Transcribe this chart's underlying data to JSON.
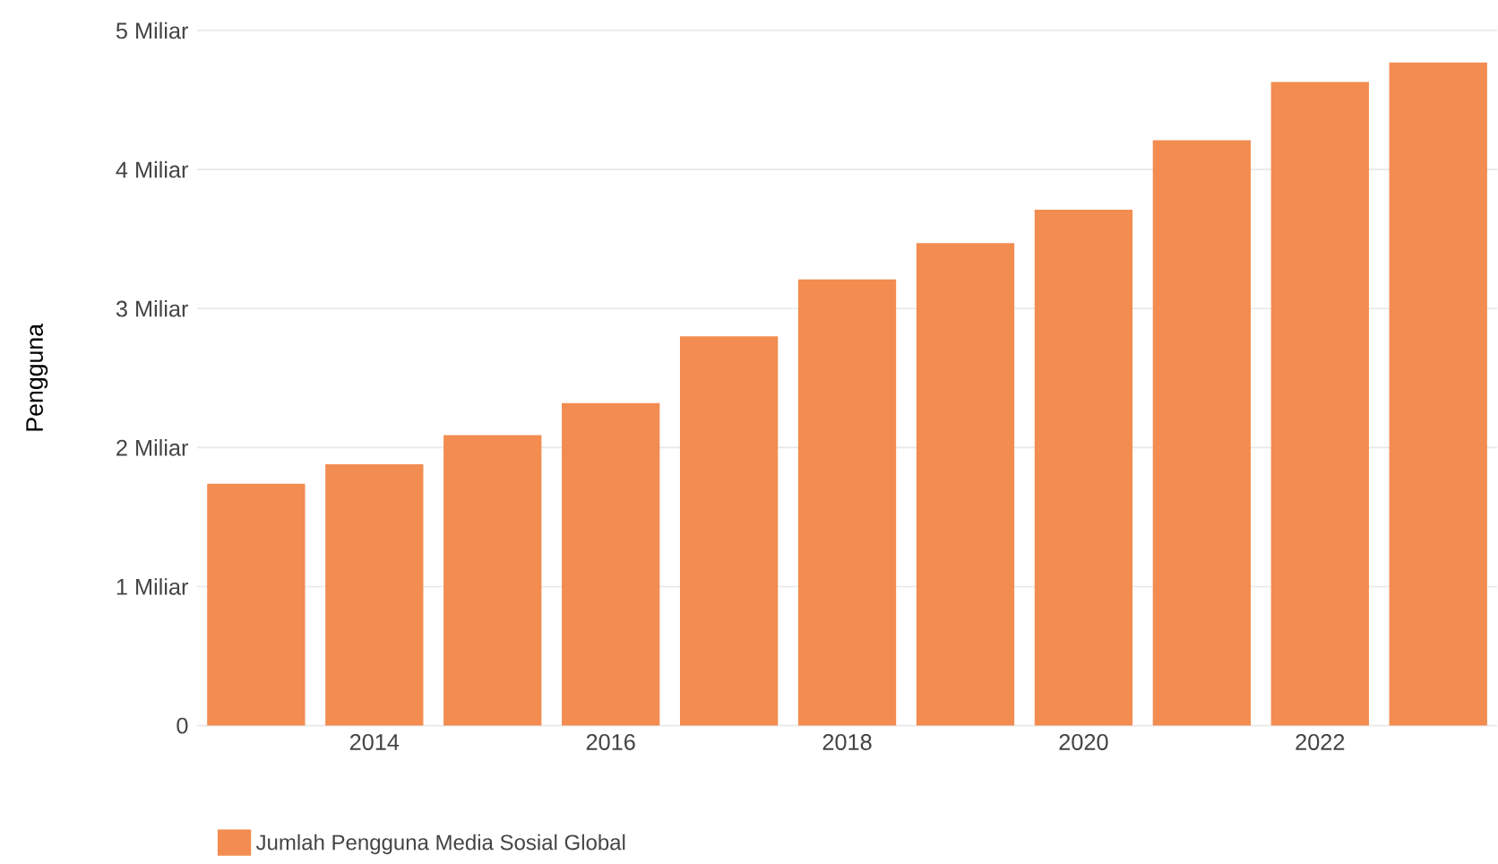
{
  "chart_data": {
    "type": "bar",
    "ylabel": "Pengguna",
    "categories": [
      null,
      "2014",
      null,
      "2016",
      null,
      "2018",
      null,
      "2020",
      null,
      "2022",
      null
    ],
    "series": [
      {
        "name": "Jumlah Pengguna Media Sosial Global",
        "color": "#f28c50",
        "values": [
          1.74,
          1.88,
          2.09,
          2.32,
          2.8,
          3.21,
          3.47,
          3.71,
          4.21,
          4.63,
          4.77
        ]
      }
    ],
    "ylim": [
      0,
      5
    ],
    "yticks": [
      0,
      {
        "value": 1,
        "label": "1 Miliar"
      },
      {
        "value": 2,
        "label": "2 Miliar"
      },
      {
        "value": 3,
        "label": "3 Miliar"
      },
      {
        "value": 4,
        "label": "4 Miliar"
      },
      {
        "value": 5,
        "label": "5 Miliar"
      }
    ],
    "grid": "y",
    "legend": "bottom left"
  }
}
